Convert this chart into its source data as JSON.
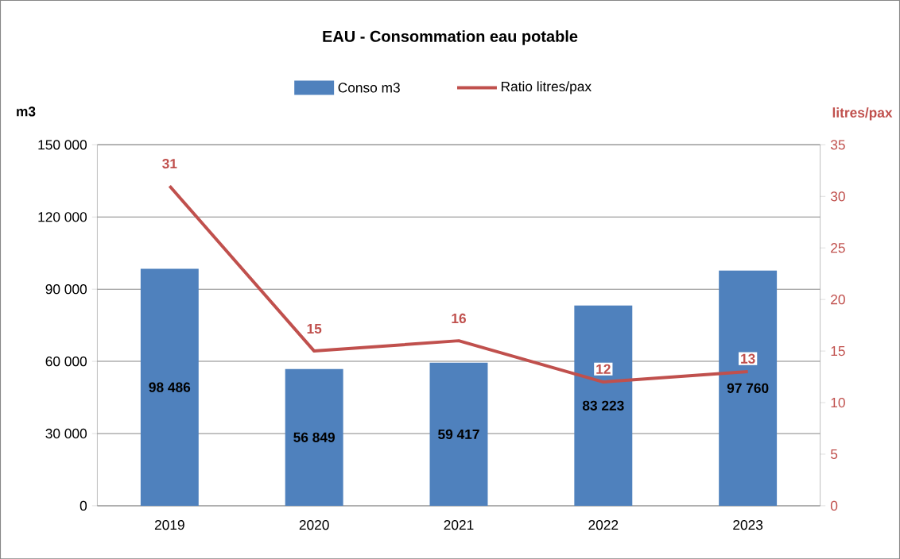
{
  "chart_data": {
    "type": "bar",
    "title": "EAU - Consommation eau potable",
    "ylabel": "m3",
    "y2label": "litres/pax",
    "categories": [
      "2019",
      "2020",
      "2021",
      "2022",
      "2023"
    ],
    "ylim": [
      0,
      150000
    ],
    "yticks": [
      {
        "value": 0,
        "label": "0"
      },
      {
        "value": 30000,
        "label": "30 000"
      },
      {
        "value": 60000,
        "label": "60 000"
      },
      {
        "value": 90000,
        "label": "90 000"
      },
      {
        "value": 120000,
        "label": "120 000"
      },
      {
        "value": 150000,
        "label": "150 000"
      }
    ],
    "y2lim": [
      0,
      35
    ],
    "y2ticks": [
      0,
      5,
      10,
      15,
      20,
      25,
      30,
      35
    ],
    "grid": "y",
    "legend": "top",
    "series": [
      {
        "name": "Conso m3",
        "color": "#4f81bd",
        "values": [
          98486,
          56849,
          59417,
          83223,
          97760
        ],
        "value_labels": [
          "98 486",
          "56 849",
          "59 417",
          "83 223",
          "97 760"
        ]
      },
      {
        "name": "Ratio litres/pax",
        "type": "line",
        "axis": "y2",
        "color": "#c0504d",
        "values": [
          31,
          15,
          16,
          12,
          13
        ],
        "value_labels": [
          "31",
          "15",
          "16",
          "12",
          "13"
        ]
      }
    ]
  }
}
